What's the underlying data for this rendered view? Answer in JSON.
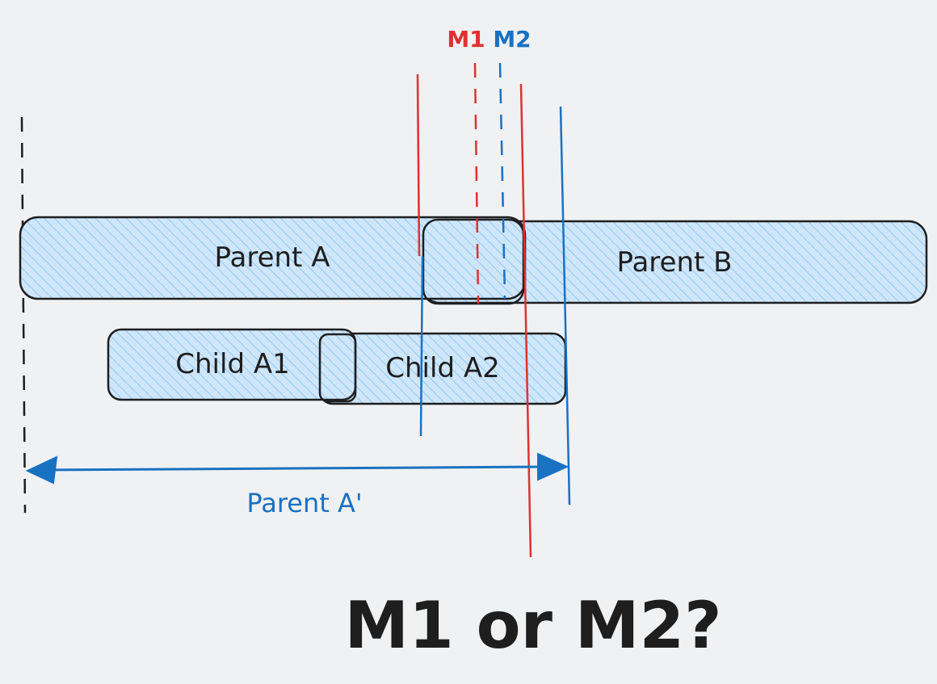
{
  "colors": {
    "background": "#f0f1f3",
    "stroke": "#1e1e1e",
    "fill": "#a5d8ff",
    "red": "#e03131",
    "blue": "#1971c2"
  },
  "markers": {
    "m1": "M1",
    "m2": "M2"
  },
  "boxes": {
    "parent_a": "Parent A",
    "parent_b": "Parent B",
    "child_a1": "Child A1",
    "child_a2": "Child A2"
  },
  "span": {
    "label": "Parent A'"
  },
  "question": "M1 or M2?"
}
